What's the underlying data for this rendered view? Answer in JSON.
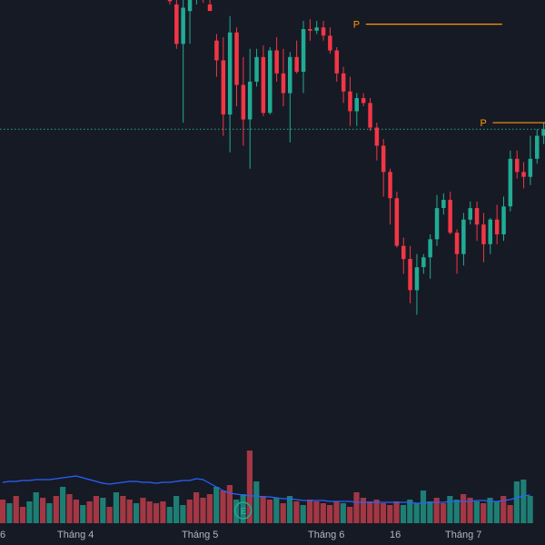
{
  "theme": {
    "background": "#161a25",
    "up_color": "#22ab94",
    "down_color": "#f23645",
    "up_volume_color": "#1e7e74",
    "down_volume_color": "#a33744",
    "volume_ma_color": "#2962ff",
    "pivot_color": "#ff9800",
    "price_line_color": "#22ab94",
    "axis_text_color": "#b2b5be"
  },
  "chart_data": {
    "type": "candlestick",
    "title": "",
    "grid": false,
    "x_axis_labels": [
      "6",
      "Tháng 4",
      "Tháng 5",
      "Tháng 6",
      "16",
      "Tháng 7"
    ],
    "pivot_marks": [
      {
        "label": "P",
        "index": 28,
        "level": 100
      },
      {
        "label": "P",
        "index": 47,
        "level": 40
      }
    ],
    "event_marker": {
      "label": "E",
      "index": 14
    },
    "current_price_line": 36,
    "ylim": [
      -80,
      128
    ],
    "candles": [
      {
        "o": 118,
        "h": 128,
        "l": 112,
        "c": 114
      },
      {
        "o": 112,
        "h": 128,
        "l": 85,
        "c": 88
      },
      {
        "o": 88,
        "h": 128,
        "l": 40,
        "c": 110
      },
      {
        "o": 108,
        "h": 125,
        "l": 88,
        "c": 118
      },
      {
        "o": 120,
        "h": 128,
        "l": 112,
        "c": 124
      },
      {
        "o": 128,
        "h": 128,
        "l": 113,
        "c": 120
      },
      {
        "o": 112,
        "h": 128,
        "l": 108,
        "c": 108
      },
      {
        "o": 90,
        "h": 94,
        "l": 68,
        "c": 78
      },
      {
        "o": 78,
        "h": 92,
        "l": 32,
        "c": 45
      },
      {
        "o": 45,
        "h": 105,
        "l": 22,
        "c": 95
      },
      {
        "o": 95,
        "h": 98,
        "l": 50,
        "c": 63
      },
      {
        "o": 63,
        "h": 80,
        "l": 26,
        "c": 42
      },
      {
        "o": 42,
        "h": 85,
        "l": 12,
        "c": 65
      },
      {
        "o": 65,
        "h": 85,
        "l": 62,
        "c": 80
      },
      {
        "o": 80,
        "h": 87,
        "l": 44,
        "c": 46
      },
      {
        "o": 46,
        "h": 86,
        "l": 45,
        "c": 84
      },
      {
        "o": 84,
        "h": 92,
        "l": 65,
        "c": 70
      },
      {
        "o": 70,
        "h": 85,
        "l": 50,
        "c": 58
      },
      {
        "o": 58,
        "h": 83,
        "l": 28,
        "c": 80
      },
      {
        "o": 80,
        "h": 90,
        "l": 70,
        "c": 71
      },
      {
        "o": 71,
        "h": 102,
        "l": 58,
        "c": 97
      },
      {
        "o": 97,
        "h": 103,
        "l": 90,
        "c": 96
      },
      {
        "o": 96,
        "h": 102,
        "l": 94,
        "c": 98
      },
      {
        "o": 98,
        "h": 102,
        "l": 90,
        "c": 93
      },
      {
        "o": 93,
        "h": 98,
        "l": 82,
        "c": 84
      },
      {
        "o": 84,
        "h": 86,
        "l": 65,
        "c": 70
      },
      {
        "o": 70,
        "h": 74,
        "l": 52,
        "c": 59
      },
      {
        "o": 59,
        "h": 68,
        "l": 38,
        "c": 47
      },
      {
        "o": 47,
        "h": 58,
        "l": 38,
        "c": 55
      },
      {
        "o": 55,
        "h": 58,
        "l": 50,
        "c": 52
      },
      {
        "o": 52,
        "h": 55,
        "l": 35,
        "c": 37
      },
      {
        "o": 37,
        "h": 40,
        "l": 17,
        "c": 26
      },
      {
        "o": 26,
        "h": 30,
        "l": -5,
        "c": 10
      },
      {
        "o": 10,
        "h": 12,
        "l": -22,
        "c": -6
      },
      {
        "o": -6,
        "h": -2,
        "l": -36,
        "c": -35
      },
      {
        "o": -35,
        "h": -30,
        "l": -52,
        "c": -43
      },
      {
        "o": -43,
        "h": -35,
        "l": -70,
        "c": -62
      },
      {
        "o": -62,
        "h": -40,
        "l": -77,
        "c": -48
      },
      {
        "o": -48,
        "h": -40,
        "l": -52,
        "c": -42
      },
      {
        "o": -42,
        "h": -28,
        "l": -55,
        "c": -31
      },
      {
        "o": -31,
        "h": -4,
        "l": -35,
        "c": -12
      },
      {
        "o": -12,
        "h": -3,
        "l": -16,
        "c": -7
      },
      {
        "o": -7,
        "h": -2,
        "l": -28,
        "c": -27
      },
      {
        "o": -27,
        "h": -25,
        "l": -52,
        "c": -40
      },
      {
        "o": -40,
        "h": -15,
        "l": -47,
        "c": -19
      },
      {
        "o": -19,
        "h": -8,
        "l": -22,
        "c": -12
      },
      {
        "o": -12,
        "h": -8,
        "l": -32,
        "c": -22
      },
      {
        "o": -22,
        "h": -15,
        "l": -45,
        "c": -34
      },
      {
        "o": -34,
        "h": -18,
        "l": -40,
        "c": -19
      },
      {
        "o": -19,
        "h": -10,
        "l": -34,
        "c": -28
      },
      {
        "o": -28,
        "h": -5,
        "l": -32,
        "c": -11
      },
      {
        "o": -11,
        "h": 23,
        "l": -14,
        "c": 18
      },
      {
        "o": 18,
        "h": 23,
        "l": 6,
        "c": 10
      },
      {
        "o": 10,
        "h": 16,
        "l": 0,
        "c": 7
      },
      {
        "o": 7,
        "h": 32,
        "l": 2,
        "c": 18
      },
      {
        "o": 18,
        "h": 36,
        "l": 15,
        "c": 32
      },
      {
        "o": 32,
        "h": 40,
        "l": 27,
        "c": 36
      }
    ],
    "volume": [
      22,
      24,
      18,
      30,
      20,
      26,
      34,
      28,
      32,
      40,
      36,
      42,
      26,
      32,
      80,
      46,
      30,
      26,
      28,
      22,
      30,
      24,
      20,
      26,
      24,
      22,
      20,
      24,
      22,
      18,
      34,
      28,
      24,
      26,
      22,
      20,
      24,
      20,
      26,
      22,
      36,
      24,
      28,
      22,
      30,
      26,
      32,
      28,
      24,
      22,
      28,
      24,
      30,
      20,
      46,
      48,
      30
    ],
    "volume_ma": [
      44,
      45,
      45,
      46,
      47,
      47,
      49,
      48,
      44,
      40,
      36,
      33,
      32,
      31,
      30,
      30,
      29,
      29,
      28,
      27,
      27,
      26,
      25,
      25,
      25,
      25,
      24,
      24,
      24,
      24,
      23,
      23,
      23,
      23,
      23,
      23,
      23,
      23,
      23,
      22,
      22,
      23,
      23,
      23,
      24,
      24,
      24,
      24,
      25,
      25,
      24,
      24,
      25,
      26,
      28,
      30,
      31
    ]
  }
}
